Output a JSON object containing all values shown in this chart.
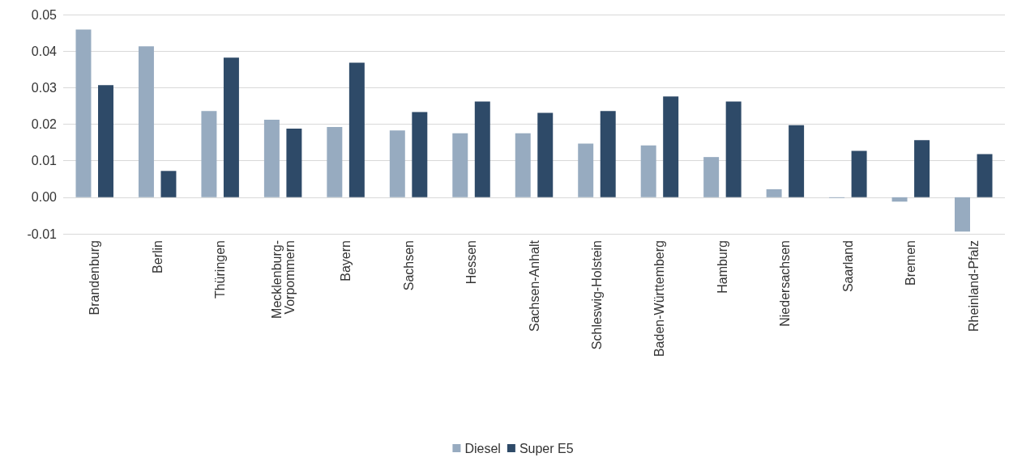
{
  "chart_data": {
    "type": "bar",
    "categories": [
      "Brandenburg",
      "Berlin",
      "Thüringen",
      "Mecklenburg-\nVorpommern",
      "Bayern",
      "Sachsen",
      "Hessen",
      "Sachsen-Anhalt",
      "Schleswig-Holstein",
      "Baden-Württemberg",
      "Hamburg",
      "Niedersachsen",
      "Saarland",
      "Bremen",
      "Rheinland-Pfalz"
    ],
    "series": [
      {
        "name": "Diesel",
        "color": "#97abc0",
        "values": [
          0.0459,
          0.0413,
          0.0236,
          0.0212,
          0.0192,
          0.0183,
          0.0175,
          0.0175,
          0.0147,
          0.0142,
          0.011,
          0.0022,
          -0.0002,
          -0.0012,
          -0.0094
        ]
      },
      {
        "name": "Super E5",
        "color": "#2e4a68",
        "values": [
          0.0307,
          0.0072,
          0.0382,
          0.0188,
          0.0368,
          0.0233,
          0.0262,
          0.0231,
          0.0236,
          0.0276,
          0.0262,
          0.0197,
          0.0127,
          0.0156,
          0.0118
        ]
      }
    ],
    "ylim": [
      -0.01,
      0.05
    ],
    "yticks": [
      {
        "value": -0.01,
        "label": "-0.01"
      },
      {
        "value": 0,
        "label": "0.00"
      },
      {
        "value": 0.01,
        "label": "0.01"
      },
      {
        "value": 0.02,
        "label": "0.02"
      },
      {
        "value": 0.03,
        "label": "0.03"
      },
      {
        "value": 0.04,
        "label": "0.04"
      },
      {
        "value": 0.05,
        "label": "0.05"
      }
    ],
    "grid": "y",
    "legend": "bottom"
  }
}
